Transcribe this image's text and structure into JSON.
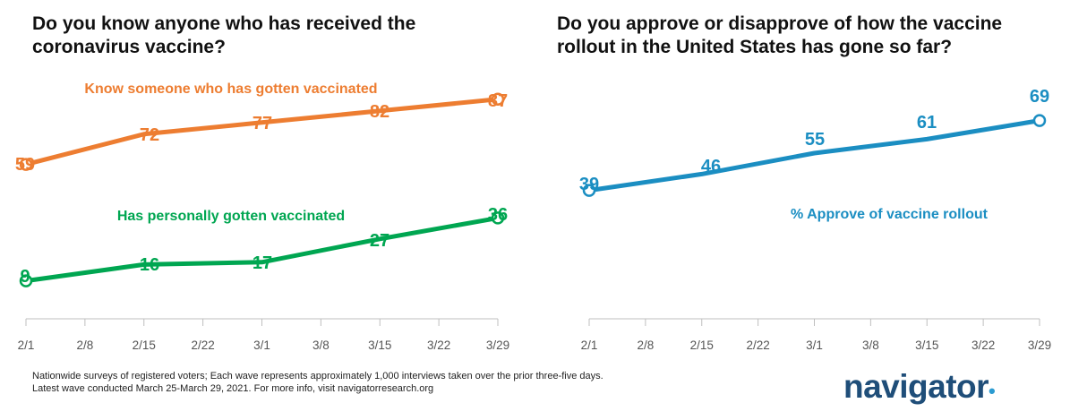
{
  "chart_data": [
    {
      "type": "line",
      "title": "Do you know anyone who has received the coronavirus vaccine?",
      "categories": [
        "2/1",
        "2/8",
        "2/15",
        "2/22",
        "3/1",
        "3/8",
        "3/15",
        "3/22",
        "3/29"
      ],
      "series": [
        {
          "name": "Know someone who has gotten vaccinated",
          "color": "#ed7d31",
          "points": [
            [
              "2/1",
              59
            ],
            [
              "2/15",
              72
            ],
            [
              "3/1",
              77
            ],
            [
              "3/15",
              82
            ],
            [
              "3/29",
              87
            ]
          ]
        },
        {
          "name": "Has personally gotten vaccinated",
          "color": "#00a651",
          "points": [
            [
              "2/1",
              9
            ],
            [
              "2/15",
              16
            ],
            [
              "3/1",
              17
            ],
            [
              "3/15",
              27
            ],
            [
              "3/29",
              36
            ]
          ]
        }
      ],
      "grid": false,
      "legend": "inline-labels"
    },
    {
      "type": "line",
      "title": "Do you approve or disapprove of how the vaccine rollout in the United States has gone so far?",
      "categories": [
        "2/1",
        "2/8",
        "2/15",
        "2/22",
        "3/1",
        "3/8",
        "3/15",
        "3/22",
        "3/29"
      ],
      "series": [
        {
          "name": "% Approve of vaccine rollout",
          "color": "#1b8ec2",
          "points": [
            [
              "2/1",
              39
            ],
            [
              "2/15",
              46
            ],
            [
              "3/1",
              55
            ],
            [
              "3/15",
              61
            ],
            [
              "3/29",
              69
            ]
          ]
        }
      ],
      "grid": false,
      "legend": "inline-labels"
    }
  ],
  "footnote": {
    "line1": "Nationwide surveys of registered voters; Each wave represents approximately 1,000 interviews taken over the prior three-five days.",
    "line2": "Latest wave conducted March 25-March 29, 2021. For more info, visit navigatorresearch.org"
  },
  "logo": {
    "text": "navigator",
    "dot": "•"
  }
}
